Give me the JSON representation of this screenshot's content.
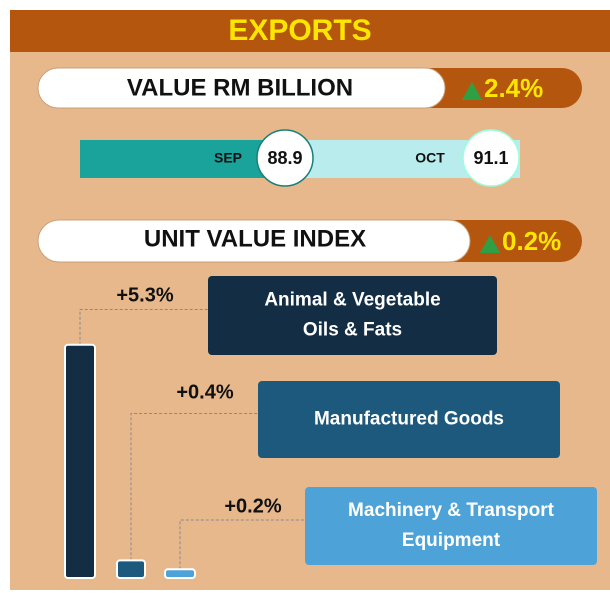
{
  "header": {
    "title": "EXPORTS"
  },
  "value": {
    "label": "VALUE RM BILLION",
    "change": "2.4%",
    "months": [
      {
        "name": "SEP",
        "value": "88.9"
      },
      {
        "name": "OCT",
        "value": "91.1"
      }
    ]
  },
  "unit_value_index": {
    "label": "UNIT VALUE INDEX",
    "change": "0.2%"
  },
  "categories": [
    {
      "name": [
        "Animal & Vegetable",
        "Oils & Fats"
      ],
      "value": 5.3,
      "value_label": "+5.3%",
      "color": "#132d44"
    },
    {
      "name": [
        "Manufactured Goods"
      ],
      "value": 0.4,
      "value_label": "+0.4%",
      "color": "#1d587d"
    },
    {
      "name": [
        "Machinery & Transport",
        "Equipment"
      ],
      "value": 0.2,
      "value_label": "+0.2%",
      "color": "#4da3d8"
    }
  ]
}
